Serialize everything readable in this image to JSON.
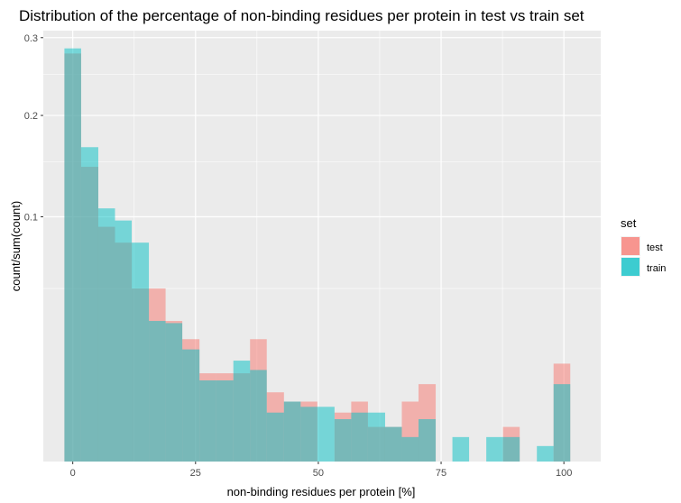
{
  "chart_data": {
    "type": "bar",
    "subtype": "overlapping-histogram",
    "title": "Distribution of the percentage of non-binding residues per protein in test vs train set",
    "xlabel": "non-binding residues per protein [%]",
    "ylabel": "count/sum(count)",
    "y_scale": "sqrt",
    "xlim": [
      -6,
      107.5
    ],
    "ylim": [
      0,
      0.31
    ],
    "x_ticks": [
      0,
      25,
      50,
      75,
      100
    ],
    "x_tick_labels": [
      "0",
      "25",
      "50",
      "75",
      "100"
    ],
    "y_ticks": [
      0.1,
      0.2,
      0.3
    ],
    "y_tick_labels": [
      "0.1",
      "0.2",
      "0.3"
    ],
    "grid": true,
    "legend": {
      "title": "set",
      "position": "right"
    },
    "bin_edges": [
      -1.7,
      1.7,
      5.2,
      8.6,
      12.0,
      15.5,
      18.9,
      22.3,
      25.8,
      29.2,
      32.7,
      36.1,
      39.5,
      43.0,
      46.4,
      49.8,
      53.3,
      56.7,
      60.1,
      63.6,
      67.0,
      70.4,
      73.9,
      77.3,
      80.7,
      84.2,
      87.6,
      91.0,
      94.5,
      97.9,
      101.3
    ],
    "series": [
      {
        "name": "test",
        "color": "#F8766D",
        "values": [
          0.278,
          0.145,
          0.092,
          0.08,
          0.05,
          0.05,
          0.033,
          0.025,
          0.013,
          0.013,
          0.013,
          0.025,
          0.008,
          0.006,
          0.006,
          0.0,
          0.004,
          0.006,
          0.002,
          0.002,
          0.006,
          0.01,
          0.0,
          0.0,
          0.0,
          0.0,
          0.002,
          0.0,
          0.0,
          0.016
        ]
      },
      {
        "name": "train",
        "color": "#00BFC4",
        "values": [
          0.285,
          0.165,
          0.107,
          0.097,
          0.08,
          0.033,
          0.032,
          0.021,
          0.011,
          0.011,
          0.017,
          0.014,
          0.004,
          0.006,
          0.005,
          0.005,
          0.003,
          0.004,
          0.004,
          0.002,
          0.001,
          0.003,
          0.0,
          0.001,
          0.0,
          0.001,
          0.001,
          0.0,
          0.0004,
          0.01
        ]
      }
    ]
  }
}
